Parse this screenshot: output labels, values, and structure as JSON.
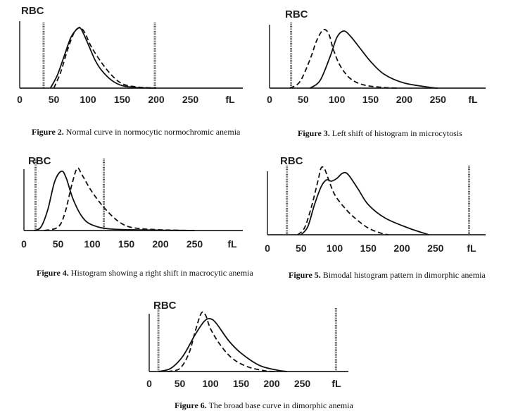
{
  "chart_data": [
    {
      "type": "line",
      "title": "RBC",
      "xlabel": "fL",
      "xlim": [
        0,
        300
      ],
      "xticks": [
        "0",
        "50",
        "100",
        "150",
        "200",
        "250"
      ],
      "markers": [
        35,
        198
      ],
      "caption_label": "Figure 2.",
      "caption_text": " Normal curve in normocytic normochromic anemia",
      "series": [
        {
          "name": "solid",
          "style": "solid",
          "x": [
            45,
            55,
            65,
            75,
            85,
            90,
            100,
            110,
            120,
            135,
            150,
            170,
            200
          ],
          "y": [
            0,
            20,
            50,
            80,
            94,
            93,
            70,
            45,
            28,
            12,
            4,
            1,
            0
          ]
        },
        {
          "name": "dashed",
          "style": "dashed",
          "x": [
            50,
            60,
            70,
            80,
            88,
            95,
            105,
            120,
            135,
            150,
            170,
            200
          ],
          "y": [
            0,
            25,
            60,
            88,
            95,
            88,
            65,
            40,
            20,
            7,
            2,
            0
          ]
        }
      ]
    },
    {
      "type": "line",
      "title": "RBC",
      "xlabel": "fL",
      "xlim": [
        0,
        300
      ],
      "xticks": [
        "0",
        "50",
        "100",
        "150",
        "200",
        "250"
      ],
      "markers": [
        32
      ],
      "caption_label": "Figure 3.",
      "caption_text": " Left shift of histogram in microcytosis",
      "series": [
        {
          "name": "dashed",
          "style": "dashed",
          "x": [
            30,
            45,
            60,
            70,
            80,
            88,
            95,
            105,
            120,
            140,
            170,
            190
          ],
          "y": [
            0,
            10,
            45,
            75,
            92,
            85,
            60,
            35,
            15,
            5,
            1,
            0
          ]
        },
        {
          "name": "solid",
          "style": "solid",
          "x": [
            60,
            75,
            90,
            100,
            110,
            120,
            135,
            150,
            170,
            200,
            240,
            250
          ],
          "y": [
            0,
            12,
            50,
            80,
            90,
            82,
            62,
            42,
            22,
            8,
            1,
            0
          ]
        }
      ]
    },
    {
      "type": "line",
      "title": "RBC",
      "xlabel": "fL",
      "xlim": [
        0,
        300
      ],
      "xticks": [
        "0",
        "50",
        "100",
        "150",
        "200",
        "250"
      ],
      "markers": [
        17,
        117
      ],
      "caption_label": "Figure 4.",
      "caption_text": " Histogram showing a right shift in macrocytic anemia",
      "series": [
        {
          "name": "solid",
          "style": "solid",
          "x": [
            15,
            25,
            35,
            45,
            55,
            62,
            72,
            85,
            100,
            130,
            200,
            250
          ],
          "y": [
            0,
            5,
            30,
            70,
            85,
            75,
            45,
            20,
            8,
            2,
            0.5,
            0
          ]
        },
        {
          "name": "dashed",
          "style": "dashed",
          "x": [
            30,
            50,
            60,
            70,
            78,
            85,
            100,
            120,
            140,
            160,
            200,
            250
          ],
          "y": [
            0,
            5,
            25,
            65,
            89,
            80,
            55,
            30,
            12,
            4,
            1,
            0
          ]
        }
      ]
    },
    {
      "type": "line",
      "title": "RBC",
      "xlabel": "fL",
      "xlim": [
        0,
        300
      ],
      "xticks": [
        "0",
        "50",
        "100",
        "150",
        "200",
        "250"
      ],
      "markers": [
        29,
        300
      ],
      "caption_label": "Figure 5.",
      "caption_text": " Bimodal histogram pattern in dimorphic anemia",
      "series": [
        {
          "name": "dashed",
          "style": "dashed",
          "x": [
            45,
            55,
            65,
            75,
            80,
            85,
            90,
            100,
            115,
            130,
            150,
            170,
            180
          ],
          "y": [
            0,
            10,
            40,
            80,
            100,
            98,
            85,
            60,
            40,
            25,
            10,
            2,
            0
          ]
        },
        {
          "name": "solid",
          "style": "solid",
          "x": [
            50,
            60,
            70,
            80,
            88,
            95,
            103,
            112,
            120,
            135,
            150,
            175,
            210,
            240
          ],
          "y": [
            0,
            12,
            45,
            72,
            82,
            80,
            84,
            92,
            90,
            68,
            45,
            25,
            10,
            0
          ]
        }
      ]
    },
    {
      "type": "line",
      "title": "RBC",
      "xlabel": "fL",
      "xlim": [
        0,
        310
      ],
      "xticks": [
        "0",
        "50",
        "100",
        "150",
        "200",
        "250"
      ],
      "markers": [
        15,
        305
      ],
      "caption_label": "Figure 6.",
      "caption_text": " The broad base curve in dimorphic anemia",
      "series": [
        {
          "name": "dashed",
          "style": "dashed",
          "x": [
            30,
            50,
            65,
            75,
            85,
            92,
            100,
            115,
            135,
            160,
            190,
            210
          ],
          "y": [
            0,
            5,
            30,
            65,
            95,
            92,
            70,
            45,
            22,
            8,
            1,
            0
          ]
        },
        {
          "name": "solid",
          "style": "solid",
          "x": [
            15,
            35,
            55,
            75,
            90,
            100,
            110,
            130,
            150,
            180,
            210,
            225
          ],
          "y": [
            0,
            5,
            25,
            60,
            82,
            86,
            78,
            50,
            30,
            10,
            2,
            0
          ]
        }
      ]
    }
  ]
}
